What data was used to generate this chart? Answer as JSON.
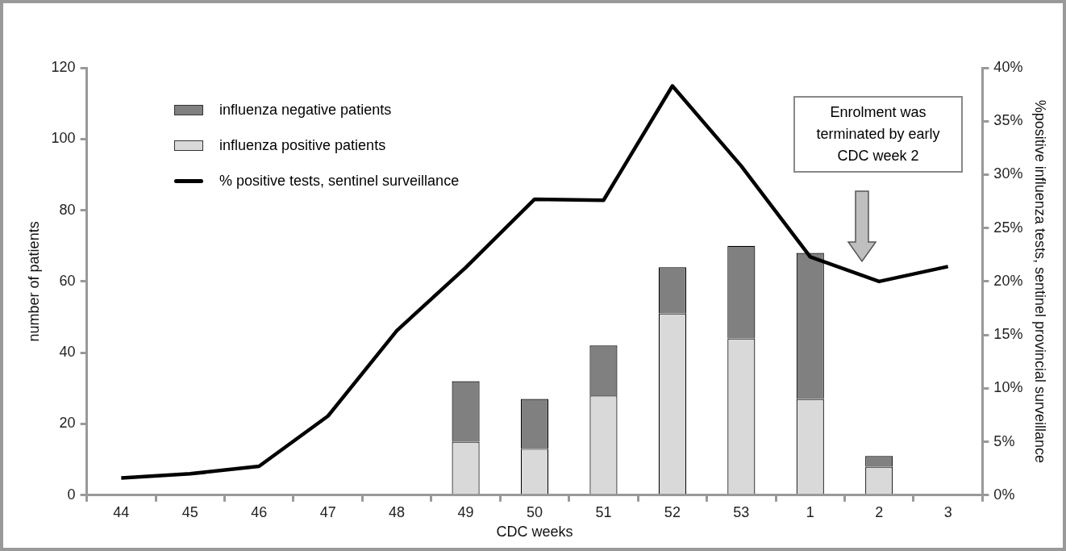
{
  "chart_data": {
    "type": "bar",
    "xlabel": "CDC weeks",
    "ylabel": "number of patients",
    "y2label": "%positive influenza tests, sentinel provincial surveillance",
    "categories": [
      "44",
      "45",
      "46",
      "47",
      "48",
      "49",
      "50",
      "51",
      "52",
      "53",
      "1",
      "2",
      "3"
    ],
    "stacked": true,
    "legend": "top left",
    "series": [
      {
        "name": "influenza positive patients",
        "color": "#d9d9d9",
        "values": [
          null,
          null,
          null,
          null,
          null,
          15,
          13,
          28,
          51,
          44,
          27,
          8,
          null
        ]
      },
      {
        "name": "influenza negative patients",
        "color": "#808080",
        "values": [
          null,
          null,
          null,
          null,
          null,
          17,
          14,
          14,
          13,
          26,
          41,
          3,
          null
        ]
      },
      {
        "name": "% positive tests, sentinel surveillance",
        "type": "line",
        "axis": "y2",
        "color": "#000000",
        "values": [
          1.6,
          2.0,
          2.7,
          7.4,
          15.4,
          21.3,
          27.7,
          27.6,
          38.3,
          30.8,
          22.3,
          20.0,
          21.4
        ]
      }
    ],
    "ylim": [
      0,
      120
    ],
    "yticks": [
      0,
      20,
      40,
      60,
      80,
      100,
      120
    ],
    "y2lim": [
      0,
      40
    ],
    "y2ticks": [
      {
        "value": 0,
        "label": "0%"
      },
      {
        "value": 5,
        "label": "5%"
      },
      {
        "value": 10,
        "label": "10%"
      },
      {
        "value": 15,
        "label": "15%"
      },
      {
        "value": 20,
        "label": "20%"
      },
      {
        "value": 25,
        "label": "25%"
      },
      {
        "value": 30,
        "label": "30%"
      },
      {
        "value": 35,
        "label": "35%"
      },
      {
        "value": 40,
        "label": "40%"
      }
    ],
    "annotations": [
      "Enrolment was terminated by early CDC week 2"
    ]
  }
}
